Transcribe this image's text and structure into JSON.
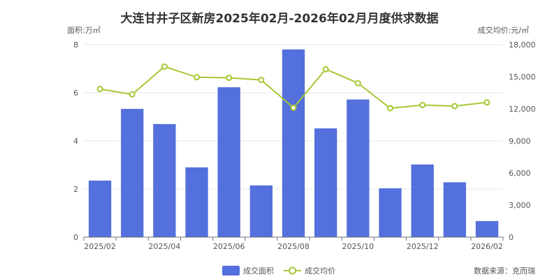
{
  "chart_data": {
    "type": "bar",
    "title": "大连甘井子区新房2025年02月-2026年02月月度供求数据",
    "left_unit": "面积:万㎡",
    "right_unit": "成交均价:元/㎡",
    "categories": [
      "2025/02",
      "2025/03",
      "2025/04",
      "2025/05",
      "2025/06",
      "2025/07",
      "2025/08",
      "2025/09",
      "2025/10",
      "2025/11",
      "2025/12",
      "2026/01",
      "2026/02"
    ],
    "x_tick_labels": [
      "2025/02",
      "",
      "2025/04",
      "",
      "2025/06",
      "",
      "2025/08",
      "",
      "2025/10",
      "",
      "2025/12",
      "",
      "2026/02"
    ],
    "series": [
      {
        "name": "成交面积",
        "type": "bar",
        "axis": "left",
        "color": "#5470dd",
        "values": [
          2.35,
          5.33,
          4.7,
          2.9,
          6.23,
          2.15,
          7.8,
          4.52,
          5.72,
          2.03,
          3.02,
          2.28,
          0.67
        ]
      },
      {
        "name": "成交均价",
        "type": "line",
        "axis": "right",
        "color": "#a5c832",
        "values": [
          13850,
          13350,
          15950,
          14950,
          14900,
          14700,
          12100,
          15700,
          14400,
          12050,
          12350,
          12250,
          12600
        ]
      }
    ],
    "ylim_left": [
      0,
      8
    ],
    "yticks_left": [
      "0",
      "2",
      "4",
      "6",
      "8"
    ],
    "ylim_right": [
      0,
      18000
    ],
    "yticks_right": [
      "0",
      "3,000",
      "6,000",
      "9,000",
      "12,000",
      "15,000",
      "18,000"
    ],
    "grid": true,
    "legend_position": "bottom-center",
    "source": "数据来源：克而瑞"
  }
}
